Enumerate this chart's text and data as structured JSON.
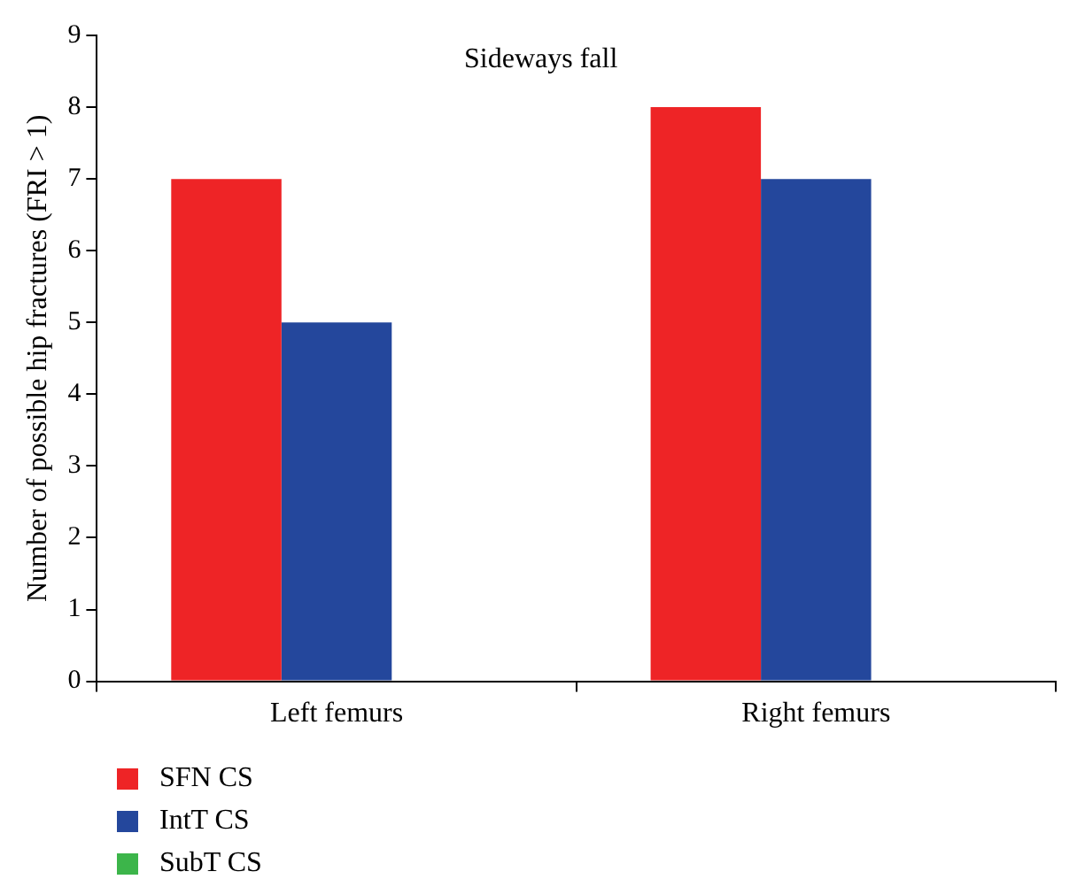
{
  "chart_data": {
    "type": "bar",
    "title": "Sideways fall",
    "ylabel": "Number of possible hip fractures (FRI > 1)",
    "categories": [
      "Left femurs",
      "Right femurs"
    ],
    "series": [
      {
        "name": "SFN CS",
        "color": "#ee2426",
        "values": [
          7,
          8
        ]
      },
      {
        "name": "IntT CS",
        "color": "#24479c",
        "values": [
          5,
          7
        ]
      },
      {
        "name": "SubT CS",
        "color": "#3cb54a",
        "values": [
          0,
          0
        ]
      }
    ],
    "ylim": [
      0,
      9
    ],
    "yticks": [
      0,
      1,
      2,
      3,
      4,
      5,
      6,
      7,
      8,
      9
    ],
    "grid": false,
    "legend": "bottom left"
  }
}
